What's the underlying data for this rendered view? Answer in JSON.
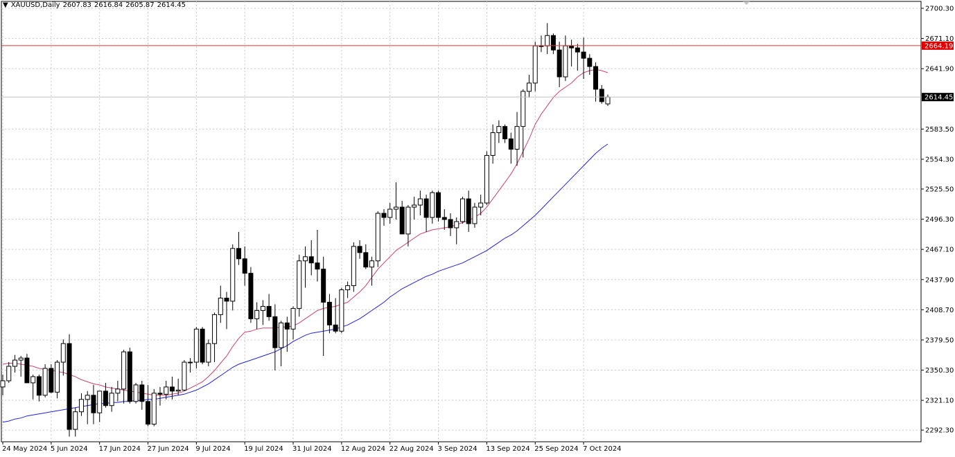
{
  "header": {
    "title": "XAUUSD,Daily",
    "open": "2607.83",
    "high": "2616.84",
    "low": "2605.87",
    "close": "2614.45",
    "menu_icon": "triangle-down-icon"
  },
  "colors": {
    "background": "#ffffff",
    "grid": "#c8c8c8",
    "candle_up_fill": "#ffffff",
    "candle_down_fill": "#000000",
    "candle_outline": "#000000",
    "ma_fast": "#d0406a",
    "ma_slow": "#2020e0",
    "price_line": "#e03030",
    "price_label_bg": "#e00000",
    "current_label_bg": "#000000"
  },
  "chart_data": {
    "type": "candlestick",
    "symbol": "XAUUSD",
    "timeframe": "Daily",
    "y_axis_ticks": [
      "2700.30",
      "2671.10",
      "2641.90",
      "2614.45",
      "2583.50",
      "2554.30",
      "2525.50",
      "2496.30",
      "2467.10",
      "2437.90",
      "2408.70",
      "2379.50",
      "2350.30",
      "2321.10",
      "2292.30"
    ],
    "y_tick_values": [
      2700.3,
      2671.1,
      2641.9,
      2583.5,
      2554.3,
      2525.5,
      2496.3,
      2467.1,
      2437.9,
      2408.7,
      2379.5,
      2350.3,
      2321.1,
      2292.3
    ],
    "ylim": [
      2281.0,
      2707.0
    ],
    "x_axis_labels": [
      {
        "label": "24 May 2024",
        "index": 0
      },
      {
        "label": "5 Jun 2024",
        "index": 8
      },
      {
        "label": "17 Jun 2024",
        "index": 16
      },
      {
        "label": "27 Jun 2024",
        "index": 24
      },
      {
        "label": "9 Jul 2024",
        "index": 32
      },
      {
        "label": "19 Jul 2024",
        "index": 40
      },
      {
        "label": "31 Jul 2024",
        "index": 48
      },
      {
        "label": "12 Aug 2024",
        "index": 56
      },
      {
        "label": "22 Aug 2024",
        "index": 64
      },
      {
        "label": "3 Sep 2024",
        "index": 72
      },
      {
        "label": "13 Sep 2024",
        "index": 80
      },
      {
        "label": "25 Sep 2024",
        "index": 88
      },
      {
        "label": "7 Oct 2024",
        "index": 96
      }
    ],
    "horizontal_line": {
      "value": 2664.19,
      "label": "2664.19"
    },
    "current_price": {
      "value": 2614.45,
      "label": "2614.45"
    },
    "candles": [
      [
        2334,
        2346,
        2326,
        2340
      ],
      [
        2340,
        2358,
        2338,
        2354
      ],
      [
        2354,
        2365,
        2348,
        2360
      ],
      [
        2360,
        2364,
        2344,
        2362
      ],
      [
        2362,
        2366,
        2338,
        2338
      ],
      [
        2338,
        2346,
        2322,
        2344
      ],
      [
        2344,
        2346,
        2320,
        2326
      ],
      [
        2326,
        2356,
        2324,
        2352
      ],
      [
        2352,
        2356,
        2328,
        2329
      ],
      [
        2329,
        2360,
        2323,
        2358
      ],
      [
        2358,
        2380,
        2345,
        2376
      ],
      [
        2376,
        2385,
        2286,
        2293
      ],
      [
        2293,
        2314,
        2286,
        2310
      ],
      [
        2310,
        2328,
        2306,
        2322
      ],
      [
        2322,
        2330,
        2298,
        2326
      ],
      [
        2326,
        2336,
        2298,
        2309
      ],
      [
        2309,
        2330,
        2300,
        2330
      ],
      [
        2330,
        2338,
        2314,
        2316
      ],
      [
        2316,
        2334,
        2310,
        2328
      ],
      [
        2328,
        2340,
        2320,
        2332
      ],
      [
        2332,
        2370,
        2318,
        2368
      ],
      [
        2368,
        2372,
        2318,
        2320
      ],
      [
        2320,
        2338,
        2318,
        2336
      ],
      [
        2336,
        2340,
        2312,
        2320
      ],
      [
        2320,
        2336,
        2296,
        2298
      ],
      [
        2298,
        2332,
        2296,
        2328
      ],
      [
        2328,
        2334,
        2316,
        2327
      ],
      [
        2327,
        2340,
        2322,
        2334
      ],
      [
        2334,
        2344,
        2322,
        2330
      ],
      [
        2330,
        2342,
        2326,
        2331
      ],
      [
        2331,
        2360,
        2330,
        2358
      ],
      [
        2358,
        2362,
        2348,
        2358
      ],
      [
        2358,
        2392,
        2352,
        2390
      ],
      [
        2390,
        2392,
        2356,
        2358
      ],
      [
        2358,
        2380,
        2354,
        2376
      ],
      [
        2376,
        2406,
        2358,
        2404
      ],
      [
        2404,
        2432,
        2396,
        2420
      ],
      [
        2420,
        2426,
        2390,
        2417
      ],
      [
        2417,
        2472,
        2408,
        2468
      ],
      [
        2468,
        2484,
        2452,
        2458
      ],
      [
        2458,
        2470,
        2432,
        2444
      ],
      [
        2444,
        2450,
        2396,
        2400
      ],
      [
        2400,
        2416,
        2390,
        2408
      ],
      [
        2408,
        2418,
        2394,
        2412
      ],
      [
        2412,
        2424,
        2398,
        2402
      ],
      [
        2402,
        2414,
        2350,
        2372
      ],
      [
        2372,
        2398,
        2354,
        2396
      ],
      [
        2396,
        2402,
        2368,
        2390
      ],
      [
        2390,
        2412,
        2380,
        2410
      ],
      [
        2410,
        2462,
        2402,
        2456
      ],
      [
        2456,
        2470,
        2430,
        2460
      ],
      [
        2460,
        2476,
        2442,
        2454
      ],
      [
        2454,
        2486,
        2436,
        2448
      ],
      [
        2448,
        2460,
        2364,
        2416
      ],
      [
        2416,
        2424,
        2386,
        2394
      ],
      [
        2394,
        2420,
        2386,
        2388
      ],
      [
        2388,
        2430,
        2386,
        2428
      ],
      [
        2428,
        2436,
        2420,
        2432
      ],
      [
        2432,
        2474,
        2426,
        2470
      ],
      [
        2470,
        2476,
        2458,
        2464
      ],
      [
        2464,
        2472,
        2448,
        2450
      ],
      [
        2450,
        2460,
        2432,
        2456
      ],
      [
        2456,
        2504,
        2450,
        2502
      ],
      [
        2502,
        2506,
        2490,
        2498
      ],
      [
        2498,
        2512,
        2492,
        2506
      ],
      [
        2506,
        2532,
        2496,
        2508
      ],
      [
        2508,
        2514,
        2486,
        2482
      ],
      [
        2482,
        2510,
        2470,
        2508
      ],
      [
        2508,
        2518,
        2496,
        2510
      ],
      [
        2510,
        2524,
        2500,
        2516
      ],
      [
        2516,
        2520,
        2484,
        2498
      ],
      [
        2498,
        2524,
        2492,
        2522
      ],
      [
        2522,
        2524,
        2494,
        2498
      ],
      [
        2498,
        2506,
        2486,
        2496
      ],
      [
        2496,
        2502,
        2480,
        2488
      ],
      [
        2488,
        2498,
        2472,
        2494
      ],
      [
        2494,
        2518,
        2492,
        2516
      ],
      [
        2516,
        2524,
        2484,
        2492
      ],
      [
        2492,
        2512,
        2488,
        2508
      ],
      [
        2508,
        2520,
        2500,
        2512
      ],
      [
        2512,
        2562,
        2510,
        2558
      ],
      [
        2558,
        2588,
        2550,
        2580
      ],
      [
        2580,
        2592,
        2570,
        2586
      ],
      [
        2586,
        2588,
        2570,
        2574
      ],
      [
        2574,
        2580,
        2550,
        2564
      ],
      [
        2564,
        2600,
        2548,
        2586
      ],
      [
        2586,
        2622,
        2556,
        2620
      ],
      [
        2620,
        2636,
        2614,
        2628
      ],
      [
        2628,
        2668,
        2620,
        2664
      ],
      [
        2664,
        2674,
        2658,
        2664
      ],
      [
        2664,
        2686,
        2656,
        2674
      ],
      [
        2674,
        2676,
        2656,
        2660
      ],
      [
        2660,
        2668,
        2624,
        2634
      ],
      [
        2634,
        2674,
        2630,
        2664
      ],
      [
        2664,
        2670,
        2644,
        2662
      ],
      [
        2662,
        2666,
        2640,
        2658
      ],
      [
        2658,
        2672,
        2632,
        2652
      ],
      [
        2652,
        2656,
        2636,
        2644
      ],
      [
        2644,
        2648,
        2610,
        2622
      ],
      [
        2622,
        2626,
        2608,
        2610
      ],
      [
        2607.83,
        2616.84,
        2605.87,
        2614.45
      ]
    ],
    "series": [
      {
        "kind": "moving_average",
        "color": "#d0406a",
        "values": [
          2356,
          2357,
          2357,
          2356,
          2355,
          2354,
          2352,
          2351,
          2350,
          2349,
          2348,
          2346,
          2344,
          2341,
          2339,
          2337,
          2336,
          2334,
          2333,
          2332,
          2331,
          2330,
          2329,
          2328,
          2327,
          2326,
          2326,
          2326,
          2327,
          2328,
          2330,
          2333,
          2336,
          2339,
          2344,
          2350,
          2357,
          2364,
          2373,
          2381,
          2387,
          2388,
          2390,
          2391,
          2391,
          2391,
          2392,
          2392,
          2393,
          2396,
          2400,
          2404,
          2408,
          2410,
          2411,
          2412,
          2414,
          2416,
          2421,
          2426,
          2432,
          2440,
          2448,
          2454,
          2460,
          2466,
          2470,
          2474,
          2478,
          2482,
          2484,
          2486,
          2487,
          2488,
          2489,
          2491,
          2493,
          2495,
          2498,
          2502,
          2508,
          2516,
          2524,
          2532,
          2540,
          2550,
          2562,
          2574,
          2588,
          2598,
          2606,
          2614,
          2620,
          2624,
          2628,
          2634,
          2638,
          2640,
          2641,
          2640,
          2638
        ]
      },
      {
        "kind": "moving_average",
        "color": "#2020e0",
        "values": [
          2300,
          2301,
          2303,
          2304,
          2306,
          2307,
          2308,
          2309,
          2310,
          2311,
          2312,
          2313,
          2314,
          2315,
          2316,
          2317,
          2318,
          2318,
          2319,
          2319,
          2320,
          2320,
          2321,
          2321,
          2322,
          2322,
          2323,
          2324,
          2325,
          2326,
          2327,
          2329,
          2331,
          2334,
          2337,
          2341,
          2345,
          2349,
          2353,
          2356,
          2358,
          2360,
          2362,
          2364,
          2366,
          2368,
          2371,
          2374,
          2378,
          2381,
          2384,
          2386,
          2387,
          2388,
          2389,
          2390,
          2392,
          2394,
          2397,
          2400,
          2404,
          2408,
          2412,
          2416,
          2421,
          2425,
          2429,
          2432,
          2435,
          2438,
          2441,
          2443,
          2446,
          2448,
          2450,
          2452,
          2454,
          2457,
          2460,
          2463,
          2466,
          2470,
          2474,
          2478,
          2481,
          2485,
          2490,
          2495,
          2500,
          2506,
          2512,
          2518,
          2524,
          2530,
          2536,
          2542,
          2548,
          2554,
          2560,
          2565,
          2569
        ]
      }
    ]
  }
}
